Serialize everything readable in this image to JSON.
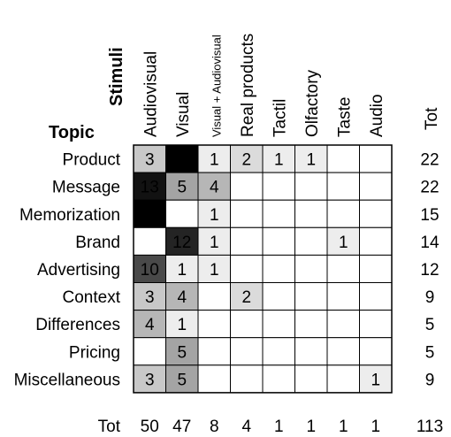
{
  "chart_data": {
    "type": "heatmap",
    "corner_labels": {
      "columns": "Stimuli",
      "rows": "Topic"
    },
    "columns": [
      "Audiovisual",
      "Visual",
      "Visual + Audiovisual",
      "Real products",
      "Tactil",
      "Olfactory",
      "Taste",
      "Audio"
    ],
    "rows": [
      "Product",
      "Message",
      "Memorization",
      "Brand",
      "Advertising",
      "Context",
      "Differences",
      "Pricing",
      "Miscellaneous"
    ],
    "values": [
      [
        3,
        14,
        1,
        2,
        1,
        1,
        null,
        null
      ],
      [
        13,
        5,
        4,
        null,
        null,
        null,
        null,
        null
      ],
      [
        14,
        null,
        1,
        null,
        null,
        null,
        null,
        null
      ],
      [
        null,
        12,
        1,
        null,
        null,
        null,
        1,
        null
      ],
      [
        10,
        1,
        1,
        null,
        null,
        null,
        null,
        null
      ],
      [
        3,
        4,
        null,
        2,
        null,
        null,
        null,
        null
      ],
      [
        4,
        1,
        null,
        null,
        null,
        null,
        null,
        null
      ],
      [
        null,
        5,
        null,
        null,
        null,
        null,
        null,
        null
      ],
      [
        3,
        5,
        null,
        null,
        null,
        null,
        null,
        1
      ]
    ],
    "total_label": "Tot",
    "row_totals": [
      22,
      22,
      15,
      14,
      12,
      9,
      5,
      5,
      9
    ],
    "column_totals": [
      50,
      47,
      8,
      4,
      1,
      1,
      1,
      1
    ],
    "grand_total": 113,
    "color_scale": {
      "low": "#ffffff",
      "high": "#000000",
      "min": 0,
      "max": 14,
      "text_light": "#ffffff",
      "text_dark": "#000000"
    }
  }
}
